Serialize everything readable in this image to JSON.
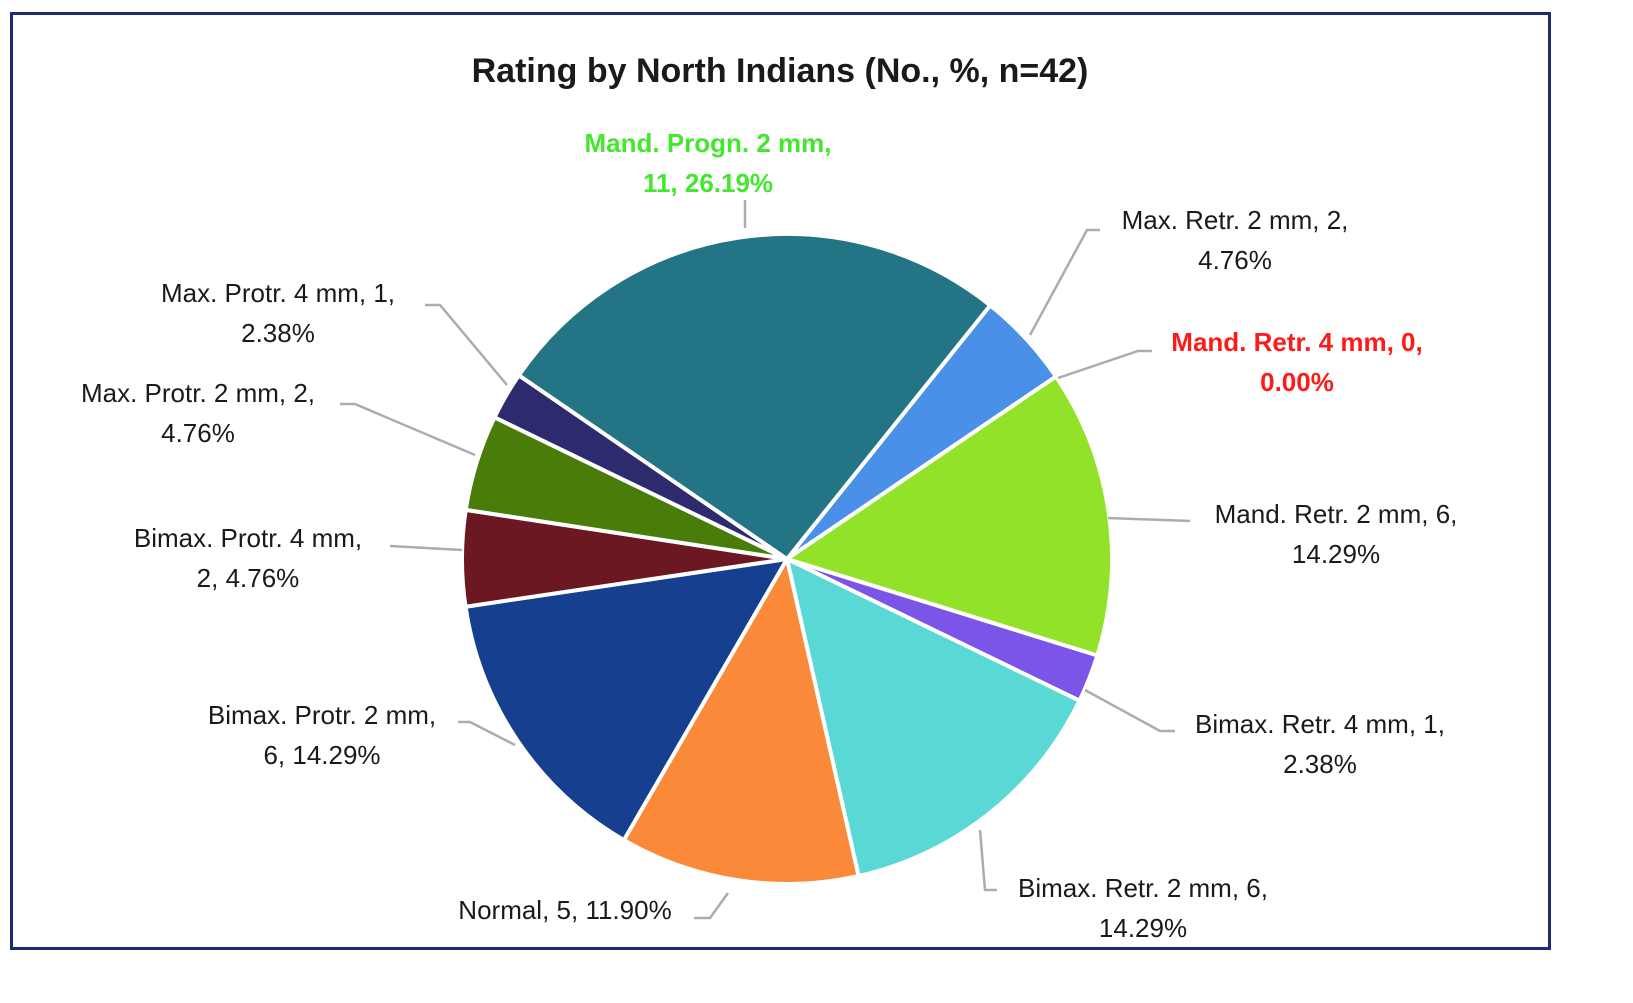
{
  "chart_data": {
    "type": "pie",
    "title": "Rating by North Indians (No., %, n=42)",
    "total": 42,
    "slices": [
      {
        "name": "Max. Retr. 2 mm",
        "count": 2,
        "percent": 4.76,
        "color": "#4a90e8",
        "label_lines": [
          "Max. Retr. 2 mm, 2,",
          "4.76%"
        ],
        "label_color": "#1a1a1a"
      },
      {
        "name": "Mand. Retr. 4 mm",
        "count": 0,
        "percent": 0.0,
        "color": "#e02020",
        "label_lines": [
          "Mand. Retr. 4 mm, 0,",
          "0.00%"
        ],
        "label_color": "#ff1a1a"
      },
      {
        "name": "Mand. Retr. 2 mm",
        "count": 6,
        "percent": 14.29,
        "color": "#92e22a",
        "label_lines": [
          "Mand. Retr. 2 mm, 6,",
          "14.29%"
        ],
        "label_color": "#1a1a1a"
      },
      {
        "name": "Bimax. Retr. 4 mm",
        "count": 1,
        "percent": 2.38,
        "color": "#7b55e8",
        "label_lines": [
          "Bimax. Retr. 4 mm, 1,",
          "2.38%"
        ],
        "label_color": "#1a1a1a"
      },
      {
        "name": "Bimax. Retr. 2 mm",
        "count": 6,
        "percent": 14.29,
        "color": "#5ad8d6",
        "label_lines": [
          "Bimax. Retr. 2 mm, 6,",
          "14.29%"
        ],
        "label_color": "#1a1a1a"
      },
      {
        "name": "Normal",
        "count": 5,
        "percent": 11.9,
        "color": "#fa8a3a",
        "label_lines": [
          "Normal, 5, 11.90%"
        ],
        "label_color": "#1a1a1a"
      },
      {
        "name": "Bimax. Protr. 2 mm",
        "count": 6,
        "percent": 14.29,
        "color": "#173f8f",
        "label_lines": [
          "Bimax. Protr. 2 mm,",
          "6, 14.29%"
        ],
        "label_color": "#1a1a1a"
      },
      {
        "name": "Bimax. Protr. 4 mm",
        "count": 2,
        "percent": 4.76,
        "color": "#6b1822",
        "label_lines": [
          "Bimax. Protr. 4 mm,",
          "2, 4.76%"
        ],
        "label_color": "#1a1a1a"
      },
      {
        "name": "Max. Protr. 2 mm",
        "count": 2,
        "percent": 4.76,
        "color": "#4a7c0a",
        "label_lines": [
          "Max. Protr. 2 mm, 2,",
          "4.76%"
        ],
        "label_color": "#1a1a1a"
      },
      {
        "name": "Max. Protr. 4 mm",
        "count": 1,
        "percent": 2.38,
        "color": "#2d2a6e",
        "label_lines": [
          "Max. Protr. 4 mm, 1,",
          "2.38%"
        ],
        "label_color": "#1a1a1a"
      },
      {
        "name": "Mand. Progn. 2 mm",
        "count": 11,
        "percent": 26.19,
        "color": "#237585",
        "label_lines": [
          "Mand. Progn. 2 mm,",
          "11, 26.19%"
        ],
        "label_color": "#44e62e"
      }
    ]
  }
}
